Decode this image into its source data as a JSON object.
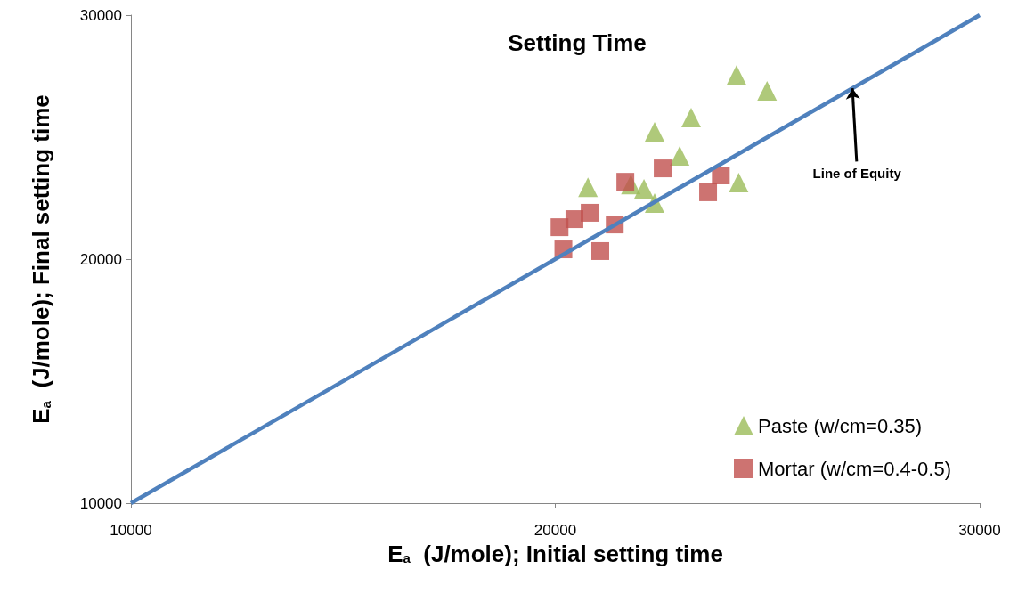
{
  "chart_data": {
    "type": "scatter",
    "title": "Setting Time",
    "xlabel": "E$_{a}$  (J/mole); Initial setting time",
    "ylabel": "E$_{a}$  (J/mole); Final setting time",
    "xlim": [
      10000,
      30000
    ],
    "xticks": [
      10000,
      20000,
      30000
    ],
    "ylim": [
      10000,
      30000
    ],
    "yticks": [
      10000,
      20000,
      30000
    ],
    "grid": false,
    "legend": "bottom right",
    "series": [
      {
        "name": "Paste (w/cm=0.35)",
        "marker": "triangle",
        "color": "#9bbb59",
        "x": [
          20770,
          21780,
          22090,
          22340,
          22340,
          22930,
          23200,
          24270,
          24990,
          24320
        ],
        "values": [
          22950,
          23060,
          22880,
          22300,
          25220,
          24230,
          25800,
          27550,
          26900,
          23140
        ]
      },
      {
        "name": "Mortar (w/cm=0.4-0.5)",
        "marker": "square",
        "color": "#c0504d",
        "x": [
          20100,
          20190,
          20450,
          20810,
          21060,
          21400,
          21650,
          22530,
          23600,
          23900
        ],
        "values": [
          21310,
          20400,
          21640,
          21900,
          20330,
          21420,
          23170,
          23720,
          22740,
          23430
        ]
      },
      {
        "type": "line",
        "marker": "none",
        "color": "#4f81bd",
        "x": [
          10000,
          30000
        ],
        "values": [
          10000,
          30000
        ]
      }
    ],
    "annotations": [
      {
        "text": "Line of Equity",
        "x": 27000,
        "y": 27000
      }
    ]
  }
}
